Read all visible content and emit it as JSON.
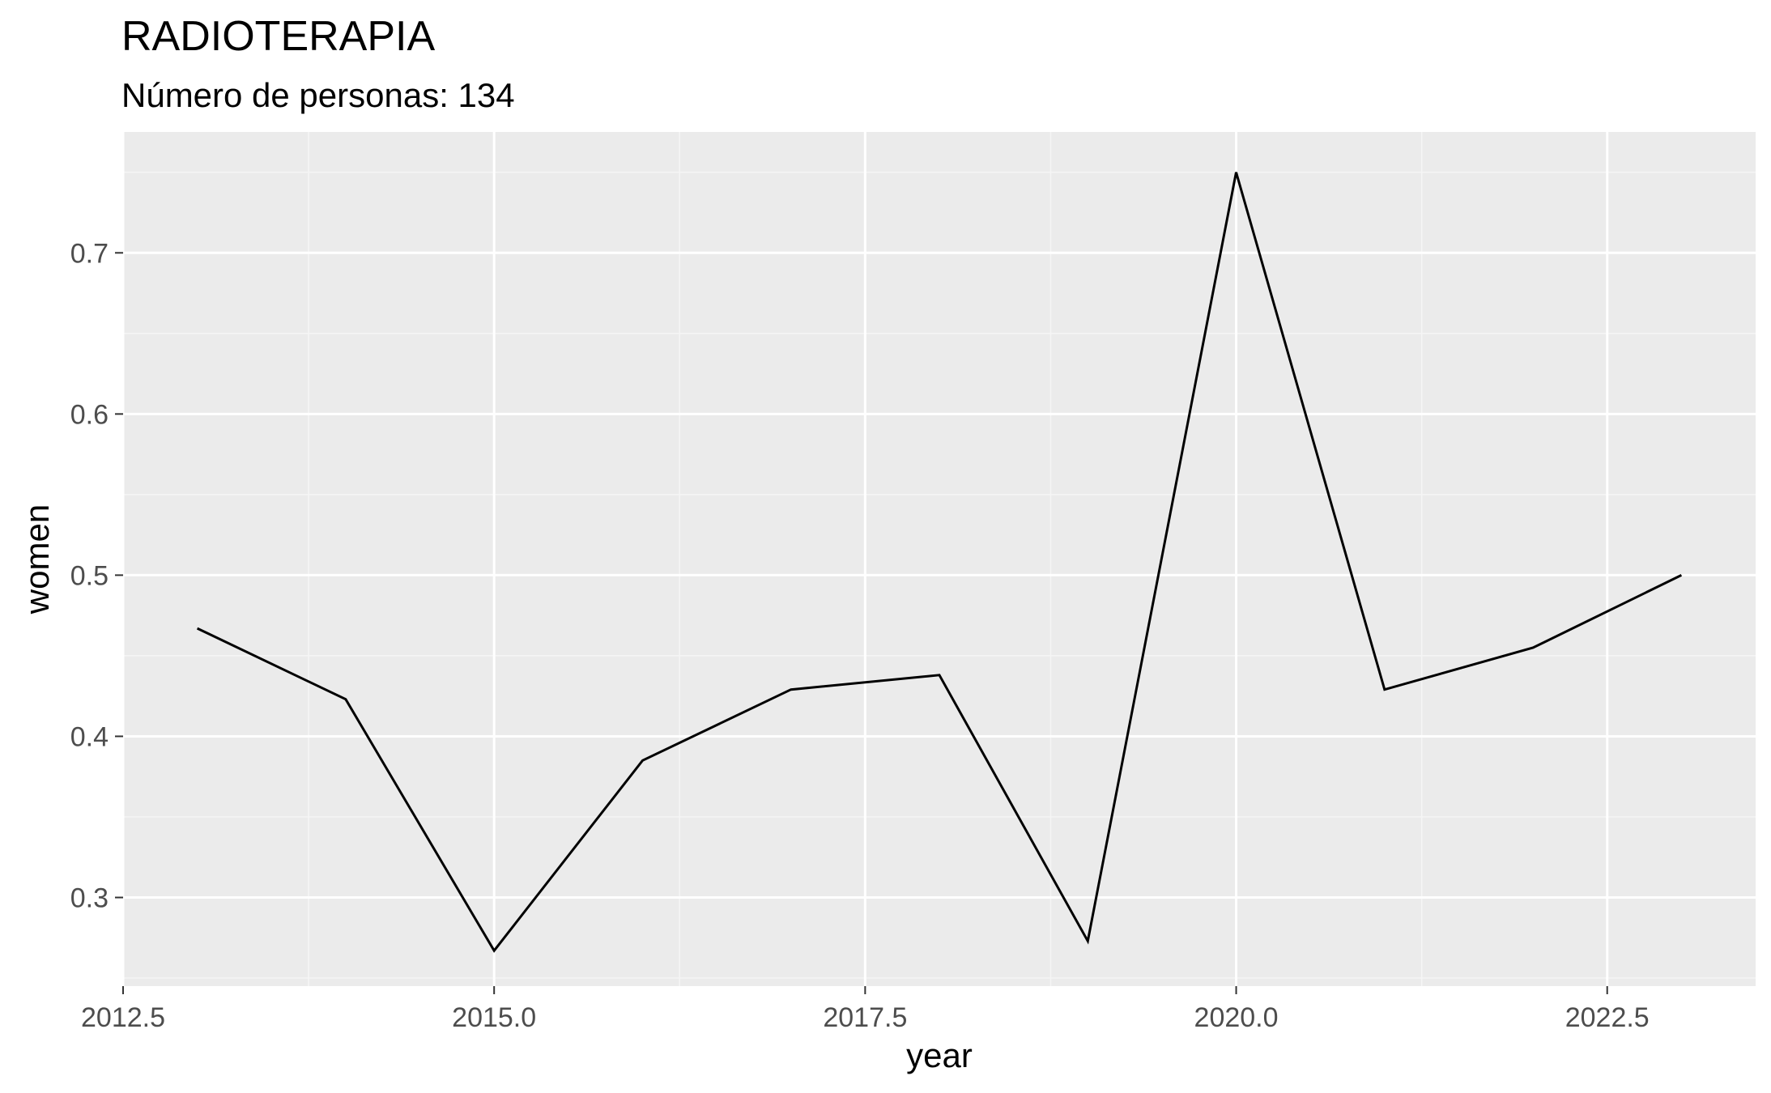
{
  "chart_data": {
    "type": "line",
    "title": "RADIOTERAPIA",
    "subtitle": "Número de personas: 134",
    "xlabel": "year",
    "ylabel": "women",
    "xlim": [
      2012.5,
      2023.5
    ],
    "ylim": [
      0.245,
      0.775
    ],
    "x_ticks": [
      2012.5,
      2015.0,
      2017.5,
      2020.0,
      2022.5
    ],
    "x_tick_labels": [
      "2012.5",
      "2015.0",
      "2017.5",
      "2020.0",
      "2022.5"
    ],
    "y_ticks": [
      0.3,
      0.4,
      0.5,
      0.6,
      0.7
    ],
    "y_tick_labels": [
      "0.3",
      "0.4",
      "0.5",
      "0.6",
      "0.7"
    ],
    "grid": true,
    "series": [
      {
        "x": [
          2013,
          2014,
          2015,
          2016,
          2017,
          2018,
          2019,
          2020,
          2021,
          2022,
          2023
        ],
        "values": [
          0.467,
          0.423,
          0.267,
          0.385,
          0.429,
          0.438,
          0.273,
          0.75,
          0.429,
          0.455,
          0.5
        ]
      }
    ],
    "colors": {
      "panel_background": "#ebebeb",
      "grid_major": "#ffffff",
      "grid_minor": "#f5f5f5",
      "line": "#000000"
    }
  }
}
